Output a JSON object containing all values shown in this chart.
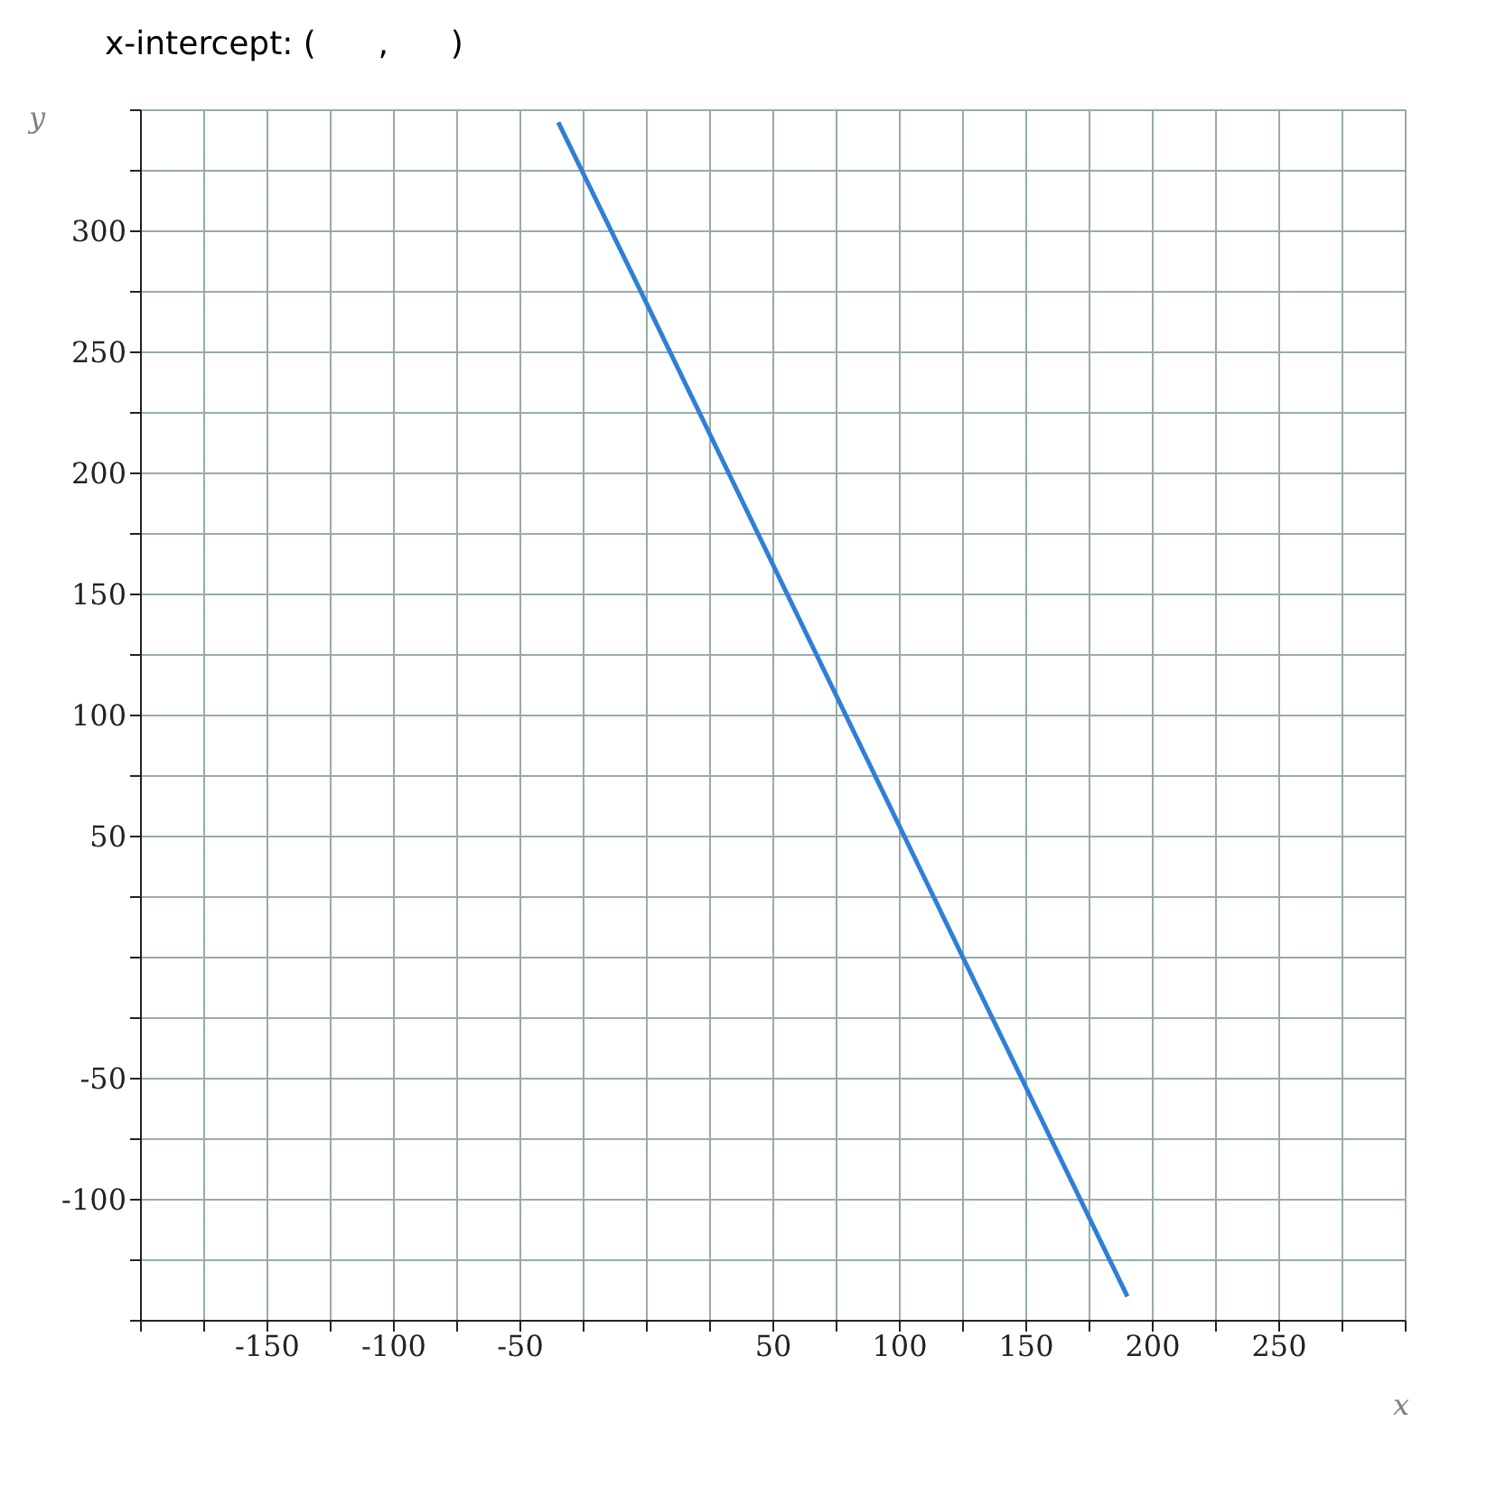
{
  "chart_data": {
    "type": "line",
    "title": "x-intercept: (      ,      )",
    "xlabel": "x",
    "ylabel": "y",
    "x": [
      -35,
      0,
      125,
      190
    ],
    "series": [
      {
        "color": "#2f7fd6",
        "values": [
          345,
          270,
          0,
          -140
        ]
      }
    ],
    "xlim": [
      -200,
      300
    ],
    "xticks": [
      {
        "value": -200,
        "label": null
      },
      {
        "value": -175,
        "label": null
      },
      -150,
      {
        "value": -125,
        "label": null
      },
      -100,
      {
        "value": -75,
        "label": null
      },
      -50,
      {
        "value": -25,
        "label": null
      },
      {
        "value": 0,
        "label": null
      },
      {
        "value": 25,
        "label": null
      },
      50,
      {
        "value": 75,
        "label": null
      },
      100,
      {
        "value": 125,
        "label": null
      },
      150,
      {
        "value": 175,
        "label": null
      },
      200,
      {
        "value": 225,
        "label": null
      },
      250,
      {
        "value": 275,
        "label": null
      },
      {
        "value": 300,
        "label": null
      }
    ],
    "ylim": [
      -150,
      350
    ],
    "yticks": [
      {
        "value": -150,
        "label": null
      },
      {
        "value": -125,
        "label": null
      },
      -100,
      {
        "value": -75,
        "label": null
      },
      -50,
      {
        "value": -25,
        "label": null
      },
      {
        "value": 0,
        "label": null
      },
      {
        "value": 25,
        "label": null
      },
      50,
      {
        "value": 75,
        "label": null
      },
      100,
      {
        "value": 125,
        "label": null
      },
      150,
      {
        "value": 175,
        "label": null
      },
      200,
      {
        "value": 225,
        "label": null
      },
      250,
      {
        "value": 275,
        "label": null
      },
      300,
      {
        "value": 325,
        "label": null
      },
      {
        "value": 350,
        "label": null
      }
    ],
    "grid": true,
    "marker": "none",
    "line_style": "solid",
    "legend": false
  }
}
